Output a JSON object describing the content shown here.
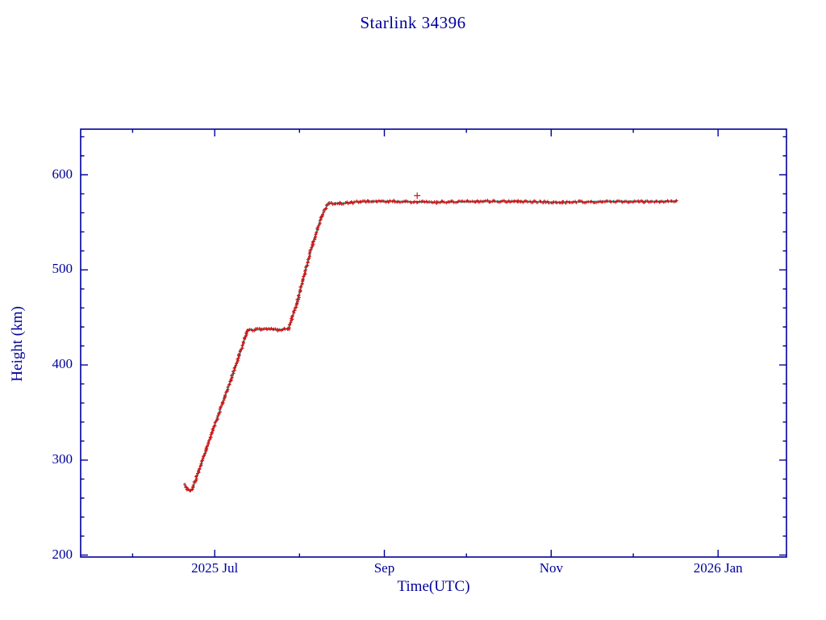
{
  "chart_data": {
    "type": "scatter",
    "title": "Starlink 34396",
    "xlabel": "Time(UTC)",
    "ylabel": "Height (km)",
    "axis_color": "#00009b",
    "marker_color": "#cf1515",
    "line_color": "#00d9d9",
    "grid": false,
    "legend": "none",
    "x_range": [
      "2025-05-13",
      "2026-01-26"
    ],
    "y_range": [
      198,
      648
    ],
    "x_ticks": [
      {
        "date": "2025-07-01",
        "label": "2025 Jul"
      },
      {
        "date": "2025-09-01",
        "label": "Sep"
      },
      {
        "date": "2025-11-01",
        "label": "Nov"
      },
      {
        "date": "2026-01-01",
        "label": "2026 Jan"
      }
    ],
    "x_minor_ticks": [
      "2025-06-01",
      "2025-08-01",
      "2025-10-01",
      "2025-12-01"
    ],
    "y_ticks": [
      200,
      300,
      400,
      500,
      600
    ],
    "y_minor_step": 20,
    "series": [
      {
        "name": "height-km",
        "points": [
          [
            "2025-06-20",
            274
          ],
          [
            "2025-06-21",
            270
          ],
          [
            "2025-06-22",
            267
          ],
          [
            "2025-06-23",
            271
          ],
          [
            "2025-06-25",
            287
          ],
          [
            "2025-06-28",
            312
          ],
          [
            "2025-07-01",
            337
          ],
          [
            "2025-07-04",
            361
          ],
          [
            "2025-07-07",
            385
          ],
          [
            "2025-07-10",
            410
          ],
          [
            "2025-07-12",
            428
          ],
          [
            "2025-07-13",
            437
          ],
          [
            "2025-07-16",
            437
          ],
          [
            "2025-07-20",
            438
          ],
          [
            "2025-07-24",
            437
          ],
          [
            "2025-07-28",
            438
          ],
          [
            "2025-07-31",
            465
          ],
          [
            "2025-08-03",
            497
          ],
          [
            "2025-08-06",
            529
          ],
          [
            "2025-08-09",
            556
          ],
          [
            "2025-08-11",
            567
          ],
          [
            "2025-08-12",
            570
          ],
          [
            "2025-08-16",
            570
          ],
          [
            "2025-08-20",
            571
          ],
          [
            "2025-08-26",
            572
          ],
          [
            "2025-09-05",
            572
          ],
          [
            "2025-09-20",
            571
          ],
          [
            "2025-10-05",
            572
          ],
          [
            "2025-10-20",
            572
          ],
          [
            "2025-11-05",
            571
          ],
          [
            "2025-11-20",
            572
          ],
          [
            "2025-12-05",
            572
          ],
          [
            "2025-12-17",
            572
          ]
        ]
      }
    ],
    "outliers": [
      [
        "2025-09-13",
        578
      ]
    ]
  }
}
